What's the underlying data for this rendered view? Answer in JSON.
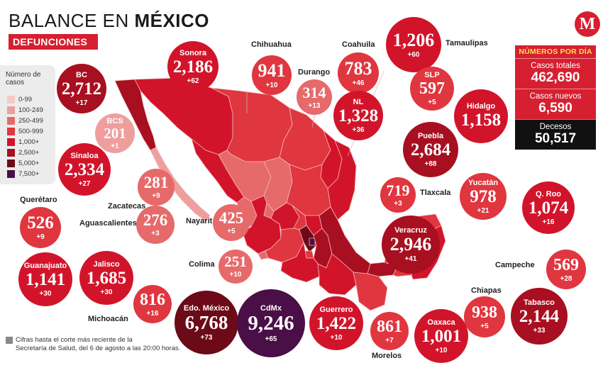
{
  "header": {
    "title_normal": "BALANCE EN ",
    "title_bold": "MÉXICO",
    "subtitle": "DEFUNCIONES"
  },
  "legend": {
    "title": "Número de casos",
    "items": [
      {
        "label": "0-99",
        "color": "#f6c9c9"
      },
      {
        "label": "100-249",
        "color": "#ef9e9e"
      },
      {
        "label": "250-499",
        "color": "#e66a6a"
      },
      {
        "label": "500-999",
        "color": "#e0363f"
      },
      {
        "label": "1,000+",
        "color": "#d2142b"
      },
      {
        "label": "2,500+",
        "color": "#a80f20"
      },
      {
        "label": "5,000+",
        "color": "#6d0a18"
      },
      {
        "label": "7,500+",
        "color": "#4a0f47"
      }
    ]
  },
  "states": {
    "bc": {
      "name": "BC",
      "value": "2,712",
      "inc": "+17"
    },
    "sonora": {
      "name": "Sonora",
      "value": "2,186",
      "inc": "+62"
    },
    "chihuahua": {
      "name": "Chihuahua",
      "value": "941",
      "inc": "+10"
    },
    "durango": {
      "name": "Durango",
      "value": "314",
      "inc": "+13"
    },
    "coahuila": {
      "name": "Coahuila",
      "value": "783",
      "inc": "+46"
    },
    "tamaulipas": {
      "name": "Tamaulipas",
      "value": "1,206",
      "inc": "+60"
    },
    "slp": {
      "name": "SLP",
      "value": "597",
      "inc": "+5"
    },
    "nl": {
      "name": "NL",
      "value": "1,328",
      "inc": "+36"
    },
    "hidalgo": {
      "name": "Hidalgo",
      "value": "1,158",
      "inc": ""
    },
    "bcs": {
      "name": "BCS",
      "value": "201",
      "inc": "+1"
    },
    "sinaloa": {
      "name": "Sinaloa",
      "value": "2,334",
      "inc": "+27"
    },
    "puebla": {
      "name": "Puebla",
      "value": "2,684",
      "inc": "+88"
    },
    "zacatecas": {
      "name": "Zacatecas",
      "value": "281",
      "inc": "+9"
    },
    "tlaxcala": {
      "name": "Tlaxcala",
      "value": "719",
      "inc": "+3"
    },
    "yucatan": {
      "name": "Yucatán",
      "value": "978",
      "inc": "+21"
    },
    "queretaro": {
      "name": "Querétaro",
      "value": "526",
      "inc": "+9"
    },
    "aguascalientes": {
      "name": "Aguascalientes",
      "value": "276",
      "inc": "+3"
    },
    "nayarit": {
      "name": "Nayarit",
      "value": "425",
      "inc": "+5"
    },
    "qroo": {
      "name": "Q. Roo",
      "value": "1,074",
      "inc": "+16"
    },
    "veracruz": {
      "name": "Veracruz",
      "value": "2,946",
      "inc": "+41"
    },
    "colima": {
      "name": "Colima",
      "value": "251",
      "inc": "+10"
    },
    "campeche": {
      "name": "Campeche",
      "value": "569",
      "inc": "+28"
    },
    "guanajuato": {
      "name": "Guanajuato",
      "value": "1,141",
      "inc": "+30"
    },
    "jalisco": {
      "name": "Jalisco",
      "value": "1,685",
      "inc": "+30"
    },
    "chiapas": {
      "name": "Chiapas",
      "value": "938",
      "inc": "+5"
    },
    "michoacan": {
      "name": "Michoacán",
      "value": "816",
      "inc": "+16"
    },
    "edomex": {
      "name": "Edo. México",
      "value": "6,768",
      "inc": "+73"
    },
    "cdmx": {
      "name": "CdMx",
      "value": "9,246",
      "inc": "+65"
    },
    "guerrero": {
      "name": "Guerrero",
      "value": "1,422",
      "inc": "+10"
    },
    "morelos": {
      "name": "Morelos",
      "value": "861",
      "inc": "+7"
    },
    "oaxaca": {
      "name": "Oaxaca",
      "value": "1,001",
      "inc": "+10"
    },
    "tabasco": {
      "name": "Tabasco",
      "value": "2,144",
      "inc": "+33"
    }
  },
  "stats": {
    "header": "NÚMEROS POR DÍA",
    "total_label": "Casos totales",
    "total_value": "462,690",
    "new_label": "Casos nuevos",
    "new_value": "6,590",
    "deaths_label": "Decesos",
    "deaths_value": "50,517"
  },
  "logo": {
    "letter": "M"
  },
  "footnote": {
    "line1": "Cifras hasta el corte más reciente de la",
    "line2": "Secretaría de Salud, del 6 de agosto a las 20:00 horas."
  }
}
